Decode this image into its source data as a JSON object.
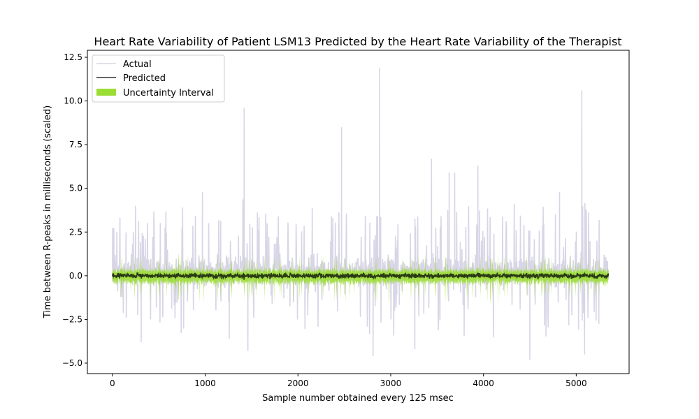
{
  "chart_data": {
    "type": "line",
    "title": "Heart Rate Variability of Patient LSM13 Predicted by the Heart Rate Variability of the Therapist",
    "xlabel": "Sample number obtained every 125 msec",
    "ylabel": "Time between R-peaks in milliseconds (scaled)",
    "xlim": [
      -270,
      5570
    ],
    "ylim": [
      -5.6,
      12.9
    ],
    "x_ticks": [
      0,
      1000,
      2000,
      3000,
      4000,
      5000
    ],
    "y_ticks": [
      -5.0,
      -2.5,
      0.0,
      2.5,
      5.0,
      7.5,
      10.0,
      12.5
    ],
    "x_tick_labels": [
      "0",
      "1000",
      "2000",
      "3000",
      "4000",
      "5000"
    ],
    "y_tick_labels": [
      "−5.0",
      "−2.5",
      "0.0",
      "2.5",
      "5.0",
      "7.5",
      "10.0",
      "12.5"
    ],
    "grid": false,
    "legend_position": "top-left",
    "n_samples": 5350,
    "series": [
      {
        "name": "Actual",
        "color": "#d8d5e6",
        "typical_range": [
          -1.5,
          2.5
        ],
        "peaks": [
          {
            "x": 1420,
            "y": 9.6
          },
          {
            "x": 2470,
            "y": 8.5
          },
          {
            "x": 2880,
            "y": 11.9
          },
          {
            "x": 5060,
            "y": 10.6
          },
          {
            "x": 3440,
            "y": 6.7
          },
          {
            "x": 3630,
            "y": 5.9
          },
          {
            "x": 3940,
            "y": 6.3
          },
          {
            "x": 3690,
            "y": 5.9
          },
          {
            "x": 970,
            "y": 4.8
          },
          {
            "x": 4820,
            "y": 4.8
          }
        ],
        "troughs": [
          {
            "x": 4500,
            "y": -4.8
          },
          {
            "x": 2810,
            "y": -4.6
          },
          {
            "x": 5090,
            "y": -4.5
          },
          {
            "x": 1460,
            "y": -4.3
          },
          {
            "x": 3260,
            "y": -4.2
          },
          {
            "x": 310,
            "y": -3.8
          },
          {
            "x": 1260,
            "y": -3.6
          }
        ]
      },
      {
        "name": "Predicted",
        "color": "#2a3a14",
        "typical_range": [
          -0.3,
          0.3
        ]
      },
      {
        "name": "Uncertainty Interval",
        "color": "#9bdd33",
        "typical_range": [
          -0.5,
          0.5
        ]
      }
    ]
  }
}
